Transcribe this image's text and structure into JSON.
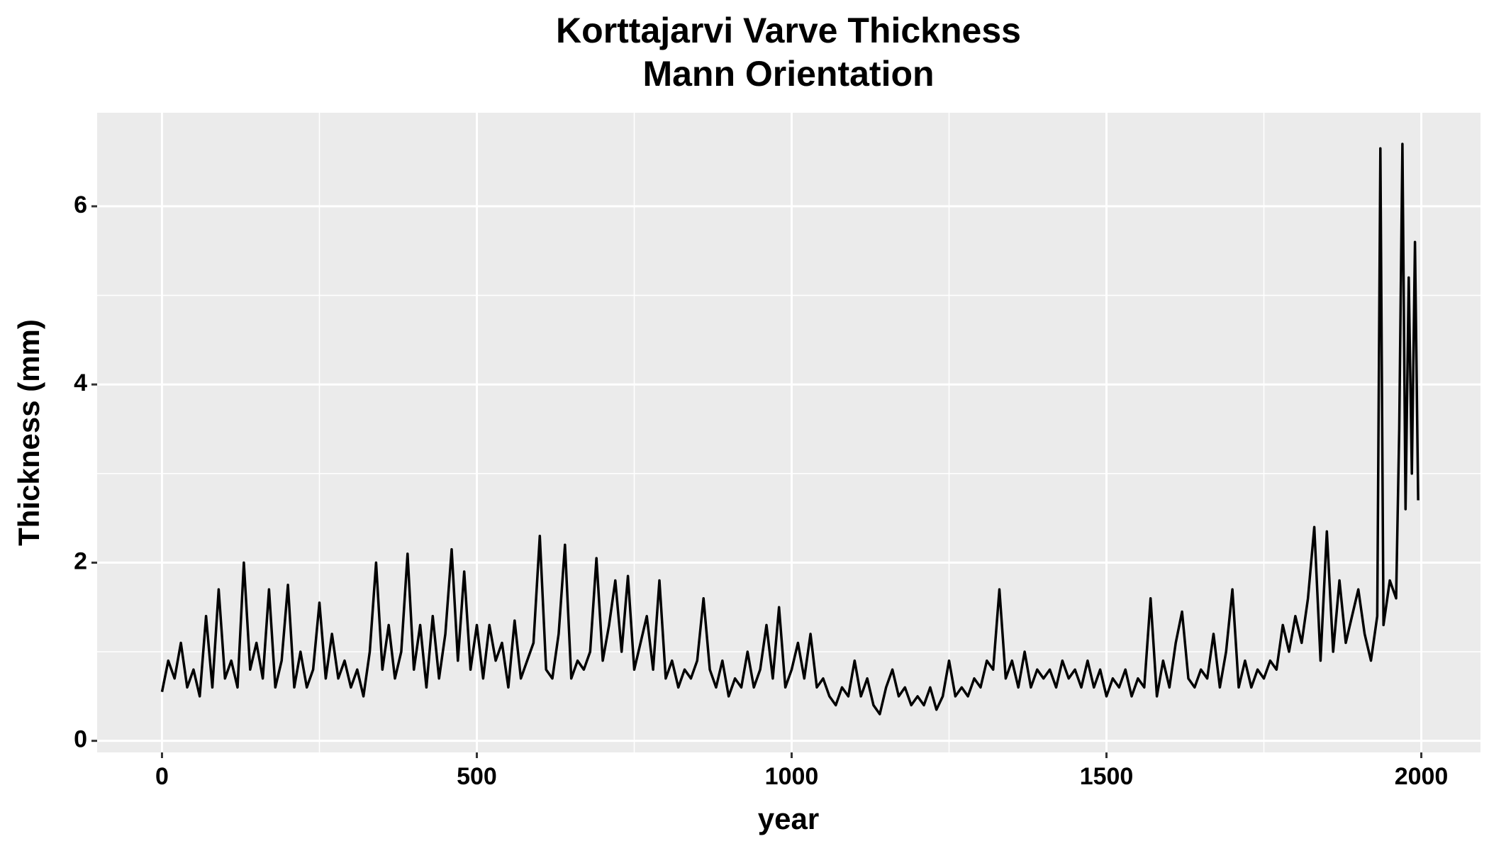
{
  "chart_data": {
    "type": "line",
    "title": "Korttajarvi Varve Thickness",
    "subtitle": "Mann Orientation",
    "x_label": "year",
    "y_label": "Thickness (mm)",
    "color": "#000000",
    "grid": true,
    "xlim": [
      -103,
      2094
    ],
    "ylim": [
      -0.13,
      7.05
    ],
    "xticks": [
      0,
      500,
      1000,
      1500,
      2000
    ],
    "yticks": [
      0,
      2,
      4,
      6
    ],
    "minor_xticks": [
      250,
      750,
      1250,
      1750
    ],
    "minor_yticks": [
      1,
      3,
      5
    ],
    "x": [
      0,
      10,
      20,
      30,
      40,
      50,
      60,
      70,
      80,
      90,
      100,
      110,
      120,
      130,
      140,
      150,
      160,
      170,
      180,
      190,
      200,
      210,
      220,
      230,
      240,
      250,
      260,
      270,
      280,
      290,
      300,
      310,
      320,
      330,
      340,
      350,
      360,
      370,
      380,
      390,
      400,
      410,
      420,
      430,
      440,
      450,
      460,
      470,
      480,
      490,
      500,
      510,
      520,
      530,
      540,
      550,
      560,
      570,
      580,
      590,
      600,
      610,
      620,
      630,
      640,
      650,
      660,
      670,
      680,
      690,
      700,
      710,
      720,
      730,
      740,
      750,
      760,
      770,
      780,
      790,
      800,
      810,
      820,
      830,
      840,
      850,
      860,
      870,
      880,
      890,
      900,
      910,
      920,
      930,
      940,
      950,
      960,
      970,
      980,
      990,
      1000,
      1010,
      1020,
      1030,
      1040,
      1050,
      1060,
      1070,
      1080,
      1090,
      1100,
      1110,
      1120,
      1130,
      1140,
      1150,
      1160,
      1170,
      1180,
      1190,
      1200,
      1210,
      1220,
      1230,
      1240,
      1250,
      1260,
      1270,
      1280,
      1290,
      1300,
      1310,
      1320,
      1330,
      1340,
      1350,
      1360,
      1370,
      1380,
      1390,
      1400,
      1410,
      1420,
      1430,
      1440,
      1450,
      1460,
      1470,
      1480,
      1490,
      1500,
      1510,
      1520,
      1530,
      1540,
      1550,
      1560,
      1570,
      1580,
      1590,
      1600,
      1610,
      1620,
      1630,
      1640,
      1650,
      1660,
      1670,
      1680,
      1690,
      1700,
      1710,
      1720,
      1730,
      1740,
      1750,
      1760,
      1770,
      1780,
      1790,
      1800,
      1810,
      1820,
      1830,
      1840,
      1850,
      1860,
      1870,
      1880,
      1890,
      1900,
      1910,
      1920,
      1930,
      1935,
      1940,
      1950,
      1960,
      1965,
      1970,
      1975,
      1980,
      1985,
      1990,
      1995
    ],
    "values": [
      0.55,
      0.9,
      0.7,
      1.1,
      0.6,
      0.8,
      0.5,
      1.4,
      0.6,
      1.7,
      0.7,
      0.9,
      0.6,
      2.0,
      0.8,
      1.1,
      0.7,
      1.7,
      0.6,
      0.9,
      1.75,
      0.6,
      1.0,
      0.6,
      0.8,
      1.55,
      0.7,
      1.2,
      0.7,
      0.9,
      0.6,
      0.8,
      0.5,
      1.0,
      2.0,
      0.8,
      1.3,
      0.7,
      1.0,
      2.1,
      0.8,
      1.3,
      0.6,
      1.4,
      0.7,
      1.2,
      2.15,
      0.9,
      1.9,
      0.8,
      1.3,
      0.7,
      1.3,
      0.9,
      1.1,
      0.6,
      1.35,
      0.7,
      0.9,
      1.1,
      2.3,
      0.8,
      0.7,
      1.2,
      2.2,
      0.7,
      0.9,
      0.8,
      1.0,
      2.05,
      0.9,
      1.3,
      1.8,
      1.0,
      1.85,
      0.8,
      1.1,
      1.4,
      0.8,
      1.8,
      0.7,
      0.9,
      0.6,
      0.8,
      0.7,
      0.9,
      1.6,
      0.8,
      0.6,
      0.9,
      0.5,
      0.7,
      0.6,
      1.0,
      0.6,
      0.8,
      1.3,
      0.7,
      1.5,
      0.6,
      0.8,
      1.1,
      0.7,
      1.2,
      0.6,
      0.7,
      0.5,
      0.4,
      0.6,
      0.5,
      0.9,
      0.5,
      0.7,
      0.4,
      0.3,
      0.6,
      0.8,
      0.5,
      0.6,
      0.4,
      0.5,
      0.4,
      0.6,
      0.35,
      0.5,
      0.9,
      0.5,
      0.6,
      0.5,
      0.7,
      0.6,
      0.9,
      0.8,
      1.7,
      0.7,
      0.9,
      0.6,
      1.0,
      0.6,
      0.8,
      0.7,
      0.8,
      0.6,
      0.9,
      0.7,
      0.8,
      0.6,
      0.9,
      0.6,
      0.8,
      0.5,
      0.7,
      0.6,
      0.8,
      0.5,
      0.7,
      0.6,
      1.6,
      0.5,
      0.9,
      0.6,
      1.1,
      1.45,
      0.7,
      0.6,
      0.8,
      0.7,
      1.2,
      0.6,
      1.0,
      1.7,
      0.6,
      0.9,
      0.6,
      0.8,
      0.7,
      0.9,
      0.8,
      1.3,
      1.0,
      1.4,
      1.1,
      1.6,
      2.4,
      0.9,
      2.35,
      1.0,
      1.8,
      1.1,
      1.4,
      1.7,
      1.2,
      0.9,
      1.4,
      6.65,
      1.3,
      1.8,
      1.6,
      3.5,
      6.7,
      2.6,
      5.2,
      3.0,
      5.6,
      2.7
    ]
  }
}
